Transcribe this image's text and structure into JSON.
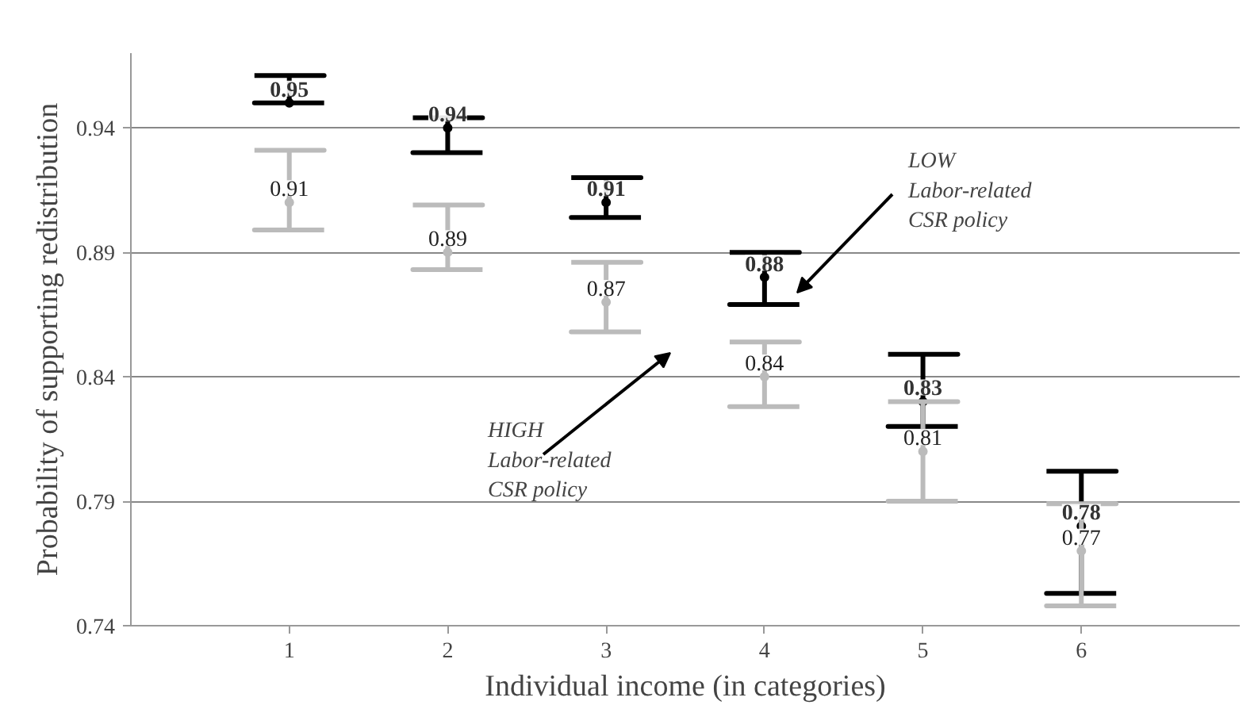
{
  "chart_data": {
    "type": "scatter",
    "xlabel": "Individual income (in categories)",
    "ylabel": "Probability of supporting redistribution",
    "x": [
      1,
      2,
      3,
      4,
      5,
      6
    ],
    "series": [
      {
        "color": "#000000",
        "values": [
          0.95,
          0.94,
          0.91,
          0.88,
          0.83,
          0.78
        ],
        "errors": [
          [
            0.95,
            0.961
          ],
          [
            0.93,
            0.944
          ],
          [
            0.904,
            0.92
          ],
          [
            0.869,
            0.89
          ],
          [
            0.82,
            0.849
          ],
          [
            0.753,
            0.802
          ]
        ]
      },
      {
        "color": "#bbbbbb",
        "values": [
          0.91,
          0.89,
          0.87,
          0.84,
          0.81,
          0.77
        ],
        "errors": [
          [
            0.899,
            0.931
          ],
          [
            0.883,
            0.909
          ],
          [
            0.858,
            0.886
          ],
          [
            0.828,
            0.854
          ],
          [
            0.79,
            0.83
          ],
          [
            0.748,
            0.789
          ]
        ]
      }
    ],
    "marker": "circle",
    "data_labels": true,
    "grid": "y",
    "xlim": [
      0,
      7
    ],
    "xticks": [
      1,
      2,
      3,
      4,
      5,
      6
    ],
    "ylim": [
      0.74,
      0.97
    ],
    "yticks": [
      0.74,
      0.79,
      0.84,
      0.89,
      0.94
    ],
    "annotations": [
      "LOW\nLabor-related\nCSR policy",
      "HIGH\nLabor-related\nCSR policy"
    ]
  }
}
